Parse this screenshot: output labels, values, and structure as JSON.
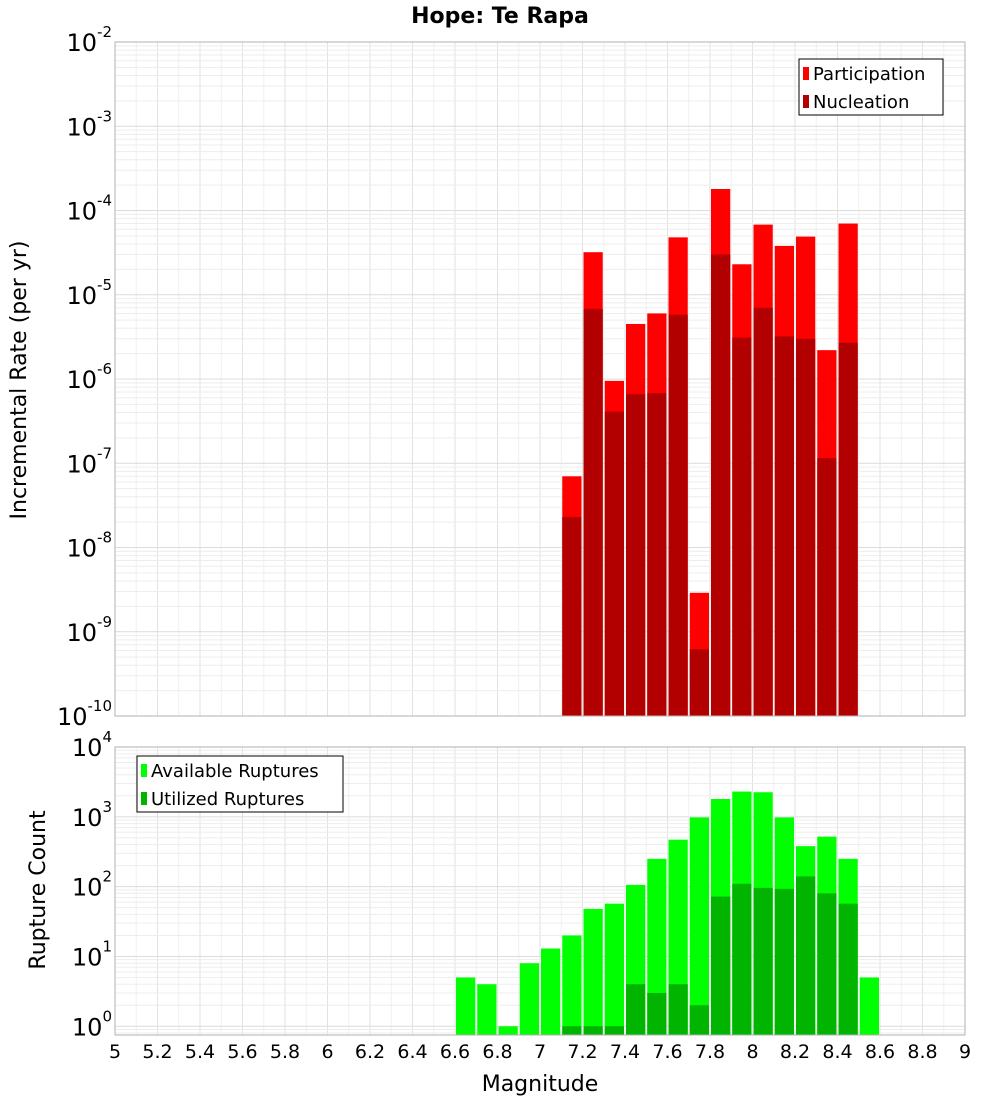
{
  "chart_data": [
    {
      "type": "bar",
      "title": "Hope: Te Rapa",
      "ylabel": "Incremental Rate (per yr)",
      "xlabel": "",
      "xlim": [
        5,
        9
      ],
      "ylim": [
        1e-10,
        0.01
      ],
      "yscale": "log",
      "grid": true,
      "legend_position": "top-right",
      "bin_width": 0.1,
      "x": [
        7.15,
        7.25,
        7.35,
        7.45,
        7.55,
        7.65,
        7.75,
        7.85,
        7.95,
        8.05,
        8.15,
        8.25,
        8.35,
        8.45
      ],
      "series": [
        {
          "name": "Participation",
          "color": "#ff0000",
          "values": [
            7e-08,
            3.2e-05,
            9.5e-07,
            4.5e-06,
            6e-06,
            4.8e-05,
            2.9e-09,
            0.00018,
            2.3e-05,
            6.8e-05,
            3.8e-05,
            4.9e-05,
            2.2e-06,
            7e-05
          ]
        },
        {
          "name": "Nucleation",
          "color": "#b20000",
          "values": [
            2.3e-08,
            6.8e-06,
            4.1e-07,
            6.6e-07,
            6.8e-07,
            5.8e-06,
            6.2e-10,
            3e-05,
            3.1e-06,
            7e-06,
            3.2e-06,
            3e-06,
            1.15e-07,
            2.7e-06
          ]
        }
      ],
      "y_ticks": [
        {
          "base": "10",
          "exp": "-2"
        },
        {
          "base": "10",
          "exp": "-3"
        },
        {
          "base": "10",
          "exp": "-4"
        },
        {
          "base": "10",
          "exp": "-5"
        },
        {
          "base": "10",
          "exp": "-6"
        },
        {
          "base": "10",
          "exp": "-7"
        },
        {
          "base": "10",
          "exp": "-8"
        },
        {
          "base": "10",
          "exp": "-9"
        },
        {
          "base": "10",
          "exp": "-10"
        }
      ]
    },
    {
      "type": "bar",
      "title": "",
      "ylabel": "Rupture Count",
      "xlabel": "Magnitude",
      "xlim": [
        5,
        9
      ],
      "ylim": [
        0.75,
        10000
      ],
      "yscale": "log",
      "grid": true,
      "legend_position": "top-left",
      "bin_width": 0.1,
      "x": [
        6.65,
        6.75,
        6.85,
        6.95,
        7.05,
        7.15,
        7.25,
        7.35,
        7.45,
        7.55,
        7.65,
        7.75,
        7.85,
        7.95,
        8.05,
        8.15,
        8.25,
        8.35,
        8.45,
        8.55
      ],
      "series": [
        {
          "name": "Available Ruptures",
          "color": "#00ff00",
          "values": [
            5,
            4,
            1,
            8,
            13,
            20,
            48,
            57,
            106,
            250,
            470,
            980,
            1800,
            2300,
            2250,
            980,
            380,
            520,
            250,
            5
          ]
        },
        {
          "name": "Utilized Ruptures",
          "color": "#00b400",
          "values": [
            0,
            0,
            0,
            0,
            0,
            1,
            1,
            1,
            4,
            3,
            4,
            2,
            72,
            110,
            96,
            93,
            140,
            80,
            57,
            0
          ]
        }
      ],
      "y_ticks": [
        {
          "base": "10",
          "exp": "4"
        },
        {
          "base": "10",
          "exp": "3"
        },
        {
          "base": "10",
          "exp": "2"
        },
        {
          "base": "10",
          "exp": "1"
        },
        {
          "base": "10",
          "exp": "0"
        }
      ],
      "x_tick_labels": [
        "5",
        "5.2",
        "5.4",
        "5.6",
        "5.8",
        "6",
        "6.2",
        "6.4",
        "6.6",
        "6.8",
        "7",
        "7.2",
        "7.4",
        "7.6",
        "7.8",
        "8",
        "8.2",
        "8.4",
        "8.6",
        "8.8",
        "9"
      ]
    }
  ]
}
